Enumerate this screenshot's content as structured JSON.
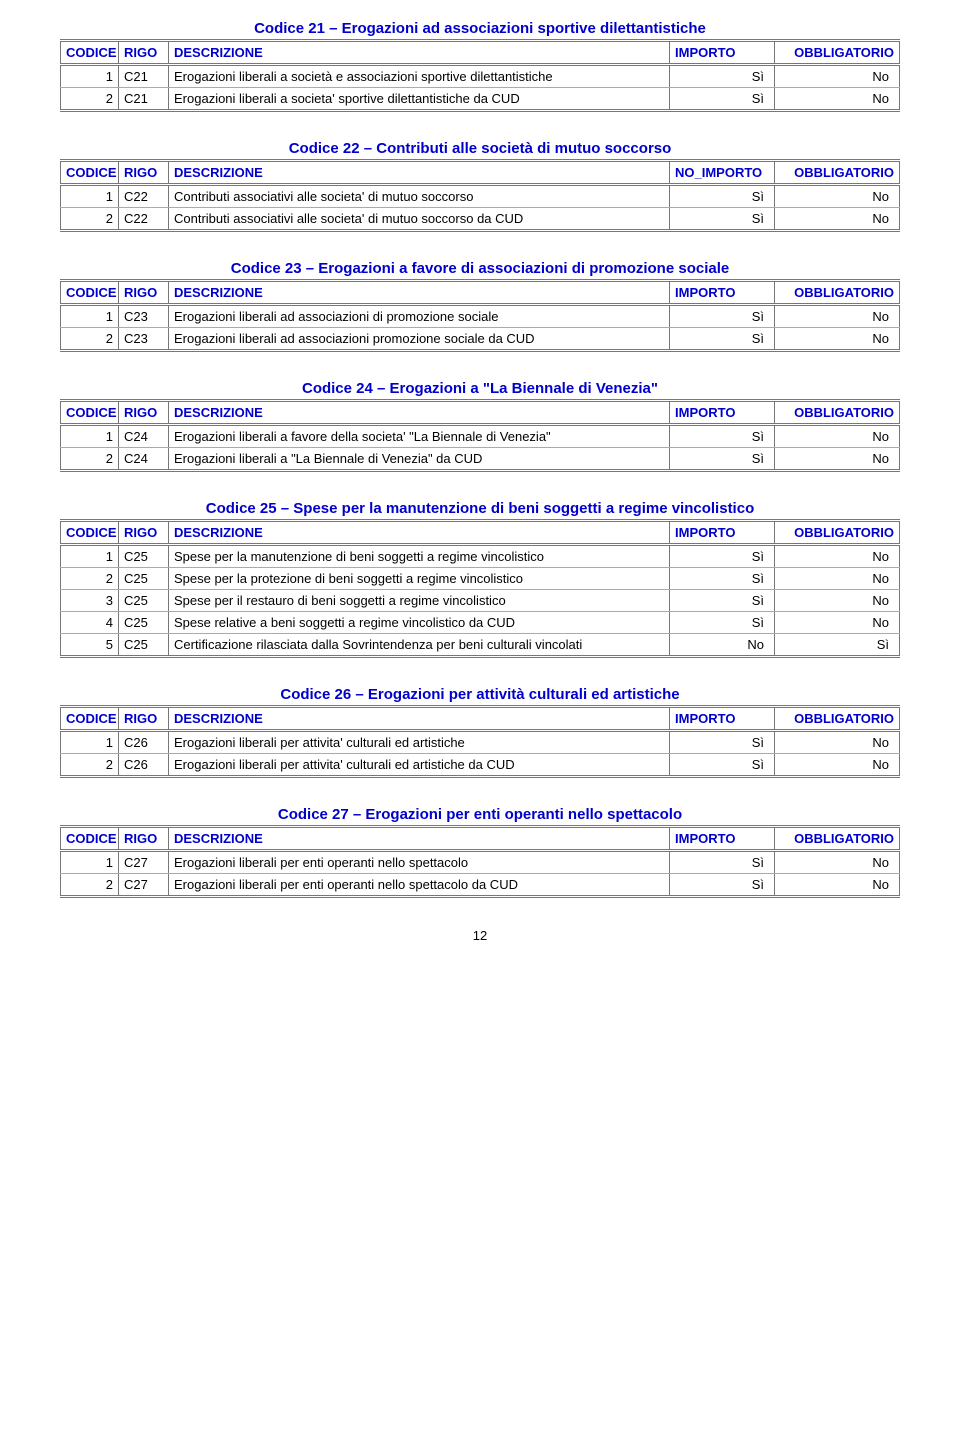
{
  "colors": {
    "title": "#0000cc",
    "header_text": "#0000cc",
    "border": "#777777",
    "row_border": "#aaaaaa",
    "background": "#ffffff"
  },
  "typography": {
    "font_family": "Arial, Helvetica, sans-serif",
    "body_size_pt": 10,
    "title_size_pt": 11,
    "title_weight": "bold"
  },
  "columns": {
    "codice": "CODICE",
    "rigo": "RIGO",
    "descrizione": "DESCRIZIONE",
    "importo": "IMPORTO",
    "no_importo": "NO_IMPORTO",
    "obbligatorio": "OBBLIGATORIO"
  },
  "sections": [
    {
      "title": "Codice 21 – Erogazioni ad associazioni sportive dilettantistiche",
      "importo_header": "IMPORTO",
      "rows": [
        {
          "codice": "1",
          "rigo": "C21",
          "desc": "Erogazioni liberali a società e associazioni sportive dilettantistiche",
          "imp": "Sì",
          "obb": "No"
        },
        {
          "codice": "2",
          "rigo": "C21",
          "desc": "Erogazioni liberali a societa' sportive dilettantistiche da CUD",
          "imp": "Sì",
          "obb": "No"
        }
      ]
    },
    {
      "title": "Codice 22 – Contributi alle società di mutuo soccorso",
      "importo_header": "NO_IMPORTO",
      "rows": [
        {
          "codice": "1",
          "rigo": "C22",
          "desc": "Contributi associativi alle societa' di mutuo soccorso",
          "imp": "Sì",
          "obb": "No"
        },
        {
          "codice": "2",
          "rigo": "C22",
          "desc": "Contributi associativi alle societa' di mutuo soccorso da CUD",
          "imp": "Sì",
          "obb": "No"
        }
      ]
    },
    {
      "title": "Codice 23 – Erogazioni a favore di associazioni di promozione sociale",
      "importo_header": "IMPORTO",
      "rows": [
        {
          "codice": "1",
          "rigo": "C23",
          "desc": "Erogazioni liberali ad associazioni di promozione sociale",
          "imp": "Sì",
          "obb": "No"
        },
        {
          "codice": "2",
          "rigo": "C23",
          "desc": "Erogazioni liberali ad associazioni promozione sociale da CUD",
          "imp": "Sì",
          "obb": "No"
        }
      ]
    },
    {
      "title": "Codice 24 – Erogazioni a \"La Biennale di Venezia\"",
      "importo_header": "IMPORTO",
      "rows": [
        {
          "codice": "1",
          "rigo": "C24",
          "desc": "Erogazioni liberali a favore della societa' \"La Biennale di Venezia\"",
          "imp": "Sì",
          "obb": "No"
        },
        {
          "codice": "2",
          "rigo": "C24",
          "desc": "Erogazioni liberali a \"La Biennale di Venezia\" da CUD",
          "imp": "Sì",
          "obb": "No"
        }
      ]
    },
    {
      "title": "Codice 25 – Spese per la manutenzione di beni soggetti a regime vincolistico",
      "importo_header": "IMPORTO",
      "rows": [
        {
          "codice": "1",
          "rigo": "C25",
          "desc": "Spese per la manutenzione di beni soggetti a regime vincolistico",
          "imp": "Sì",
          "obb": "No"
        },
        {
          "codice": "2",
          "rigo": "C25",
          "desc": "Spese per la protezione di beni soggetti a regime vincolistico",
          "imp": "Sì",
          "obb": "No"
        },
        {
          "codice": "3",
          "rigo": "C25",
          "desc": "Spese per il restauro di beni soggetti a regime vincolistico",
          "imp": "Sì",
          "obb": "No"
        },
        {
          "codice": "4",
          "rigo": "C25",
          "desc": "Spese relative a beni soggetti a regime vincolistico da CUD",
          "imp": "Sì",
          "obb": "No"
        },
        {
          "codice": "5",
          "rigo": "C25",
          "desc": "Certificazione rilasciata dalla Sovrintendenza per beni culturali vincolati",
          "imp": "No",
          "obb": "Sì"
        }
      ]
    },
    {
      "title": "Codice 26 – Erogazioni per attività culturali ed artistiche",
      "importo_header": "IMPORTO",
      "rows": [
        {
          "codice": "1",
          "rigo": "C26",
          "desc": "Erogazioni liberali per attivita' culturali ed artistiche",
          "imp": "Sì",
          "obb": "No"
        },
        {
          "codice": "2",
          "rigo": "C26",
          "desc": "Erogazioni liberali per attivita' culturali ed artistiche da CUD",
          "imp": "Sì",
          "obb": "No"
        }
      ]
    },
    {
      "title": "Codice 27 – Erogazioni per enti operanti nello spettacolo",
      "importo_header": "IMPORTO",
      "rows": [
        {
          "codice": "1",
          "rigo": "C27",
          "desc": "Erogazioni liberali per enti operanti nello spettacolo",
          "imp": "Sì",
          "obb": "No"
        },
        {
          "codice": "2",
          "rigo": "C27",
          "desc": "Erogazioni liberali per enti operanti nello spettacolo da CUD",
          "imp": "Sì",
          "obb": "No"
        }
      ]
    }
  ],
  "page_number": "12"
}
